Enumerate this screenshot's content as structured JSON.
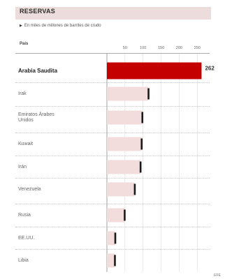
{
  "chart_data": {
    "type": "bar",
    "orientation": "horizontal",
    "title": "RESERVAS",
    "subtitle": "En miles de millones de barriles de crudo",
    "column_header": "País",
    "categories": [
      "Arabia Saudita",
      "Irak",
      "Emiratos Árabes Unidos",
      "Kuwait",
      "Irán",
      "Venezuela",
      "Rusia",
      "EE.UU.",
      "Libia"
    ],
    "values": [
      262,
      115,
      98,
      96,
      93,
      77,
      49,
      23,
      22
    ],
    "highlight_index": 0,
    "data_labels": [
      "262",
      "",
      "",
      "",
      "",
      "",
      "",
      "",
      ""
    ],
    "xticks": [
      50,
      100,
      150,
      200,
      250
    ],
    "xlim": [
      0,
      280
    ],
    "grid": true,
    "colors": {
      "highlight": "#c40000",
      "bar": "#f2dcdc",
      "bar_end": "#1a1a1a",
      "title_band": "#eddcdc"
    },
    "source": "EFE"
  }
}
